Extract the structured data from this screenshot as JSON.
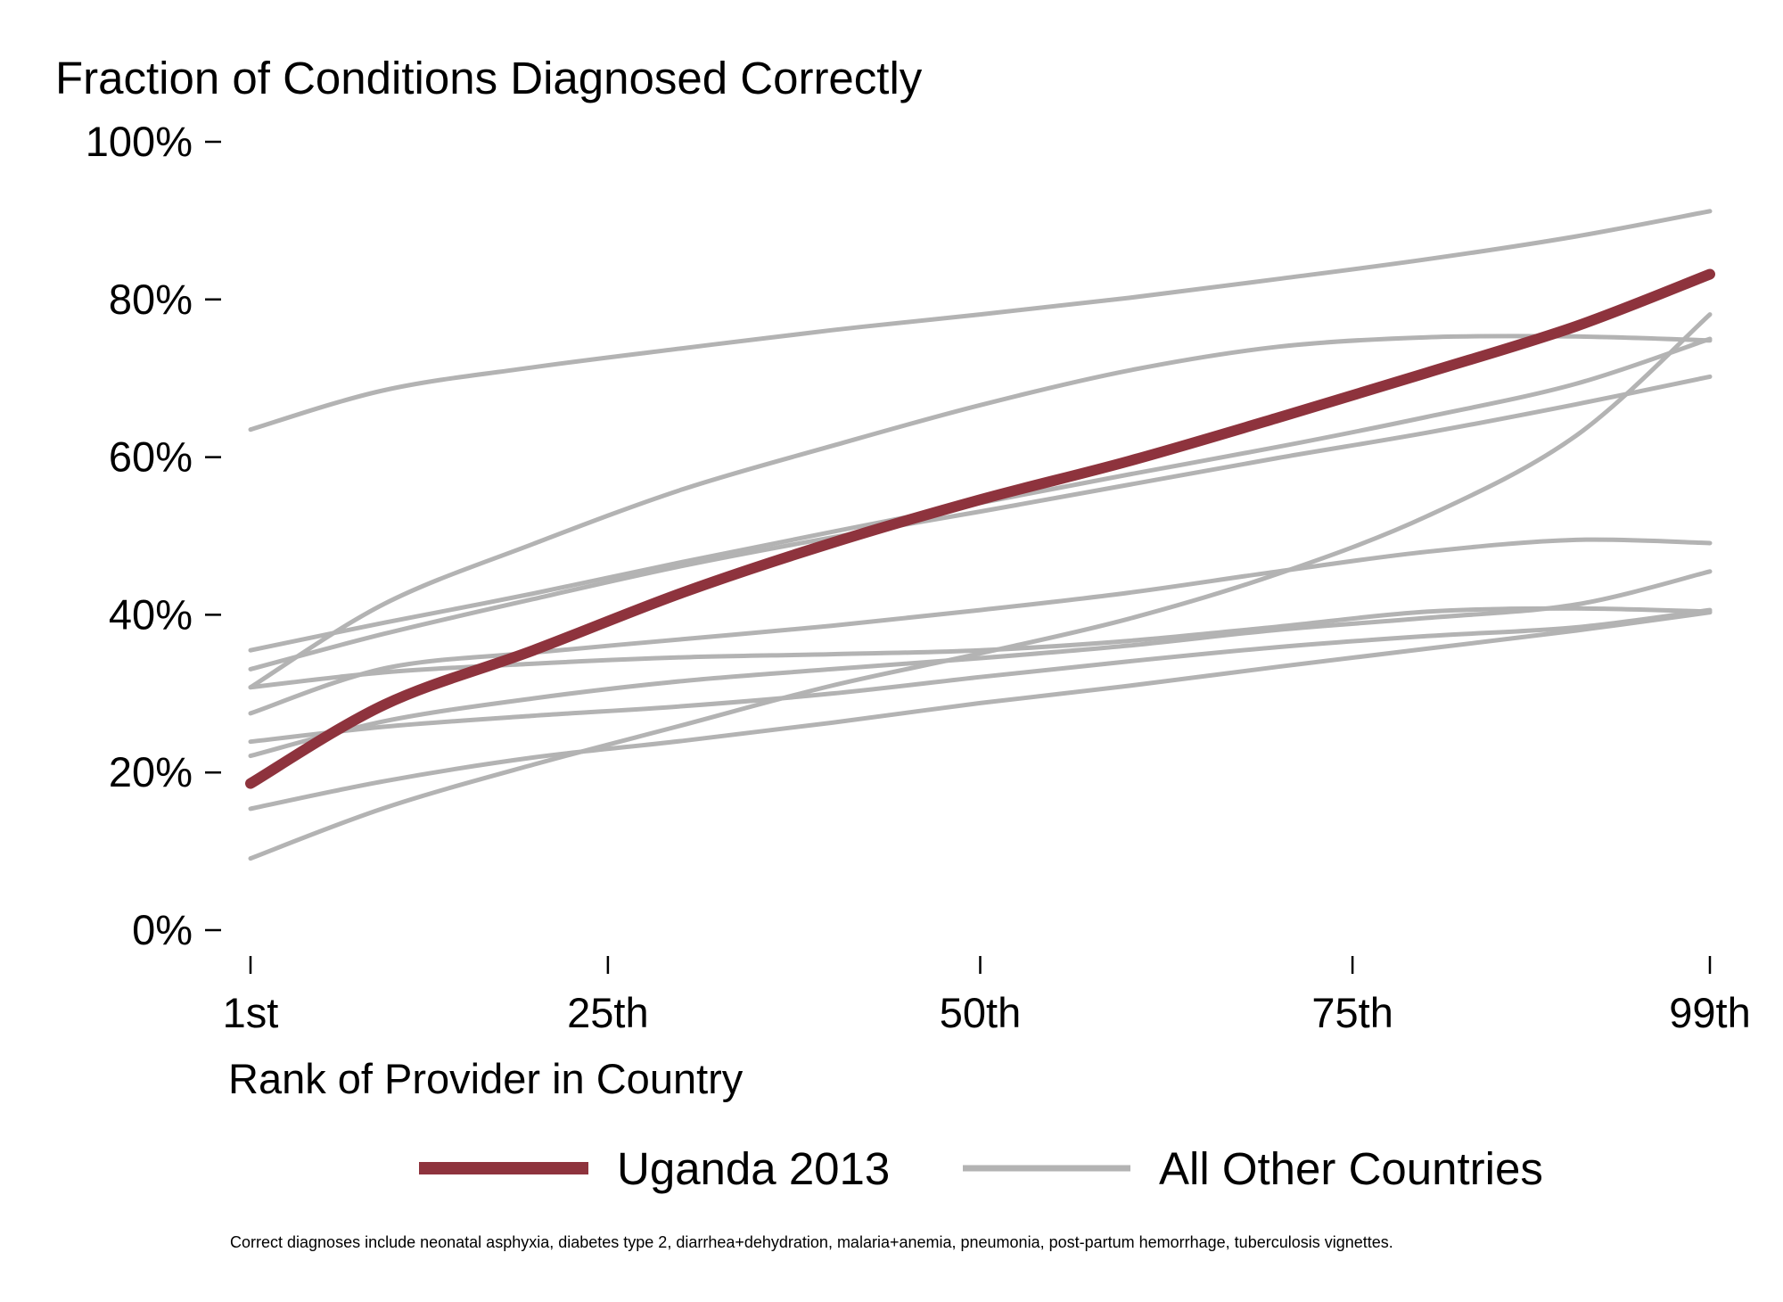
{
  "chart_data": {
    "type": "line",
    "title": "Fraction of Conditions Diagnosed Correctly",
    "xlabel": "Rank of Provider in Country",
    "ylabel": "",
    "x_ticks": [
      {
        "value": 1,
        "label": "1st"
      },
      {
        "value": 25,
        "label": "25th"
      },
      {
        "value": 50,
        "label": "50th"
      },
      {
        "value": 75,
        "label": "75th"
      },
      {
        "value": 99,
        "label": "99th"
      }
    ],
    "y_ticks": [
      {
        "value": 0,
        "label": "0%"
      },
      {
        "value": 20,
        "label": "20%"
      },
      {
        "value": 40,
        "label": "40%"
      },
      {
        "value": 60,
        "label": "60%"
      },
      {
        "value": 80,
        "label": "80%"
      },
      {
        "value": 100,
        "label": "100%"
      }
    ],
    "xlim": [
      1,
      99
    ],
    "ylim": [
      0,
      100
    ],
    "grid": false,
    "legend_position": "bottom",
    "note": "Correct diagnoses include neonatal asphyxia, diabetes type 2, diarrhea+dehydration, malaria+anemia, pneumonia, post-partum hemorrhage, tuberculosis vignettes.",
    "legend": [
      {
        "label": "Uganda 2013",
        "color": "#8e333d"
      },
      {
        "label": "All Other Countries",
        "color": "#b3b3b3"
      }
    ],
    "highlight": {
      "name": "Uganda 2013",
      "color": "#8e333d",
      "x": [
        1,
        10,
        20,
        30,
        40,
        50,
        60,
        70,
        80,
        90,
        99
      ],
      "y": [
        18.6,
        28.6,
        35.5,
        42.8,
        49.1,
        54.6,
        59.5,
        65.0,
        70.7,
        76.6,
        83.2
      ]
    },
    "others": {
      "color": "#b3b3b3",
      "x": [
        1,
        10,
        20,
        30,
        40,
        50,
        60,
        70,
        80,
        90,
        99
      ],
      "lines": [
        [
          63.5,
          68.5,
          71.4,
          73.8,
          76.1,
          78.1,
          80.2,
          82.6,
          85.1,
          88.0,
          91.2
        ],
        [
          35.5,
          39.0,
          42.7,
          46.7,
          50.5,
          54.2,
          57.8,
          61.3,
          65.1,
          69.3,
          75.0
        ],
        [
          30.8,
          41.4,
          49.0,
          55.9,
          61.4,
          66.6,
          71.0,
          74.0,
          75.2,
          75.3,
          74.8
        ],
        [
          33.1,
          37.6,
          42.0,
          46.2,
          49.8,
          53.1,
          56.5,
          59.9,
          63.1,
          66.7,
          70.2
        ],
        [
          27.5,
          33.2,
          35.2,
          36.9,
          38.6,
          40.6,
          42.8,
          45.5,
          48.0,
          49.5,
          49.1
        ],
        [
          23.9,
          25.8,
          27.2,
          28.4,
          30.0,
          32.1,
          34.1,
          35.9,
          37.3,
          38.4,
          40.6
        ],
        [
          22.1,
          26.5,
          29.4,
          31.6,
          33.1,
          34.5,
          36.1,
          38.1,
          39.6,
          41.3,
          45.5
        ],
        [
          15.4,
          18.9,
          21.9,
          24.0,
          26.3,
          28.8,
          31.0,
          33.4,
          35.7,
          38.0,
          40.3
        ],
        [
          9.1,
          15.5,
          21.0,
          26.0,
          31.0,
          35.1,
          39.5,
          45.2,
          52.5,
          62.7,
          78.1
        ],
        [
          30.8,
          32.7,
          33.8,
          34.6,
          35.0,
          35.5,
          36.7,
          38.5,
          40.4,
          40.8,
          40.4
        ]
      ]
    }
  }
}
